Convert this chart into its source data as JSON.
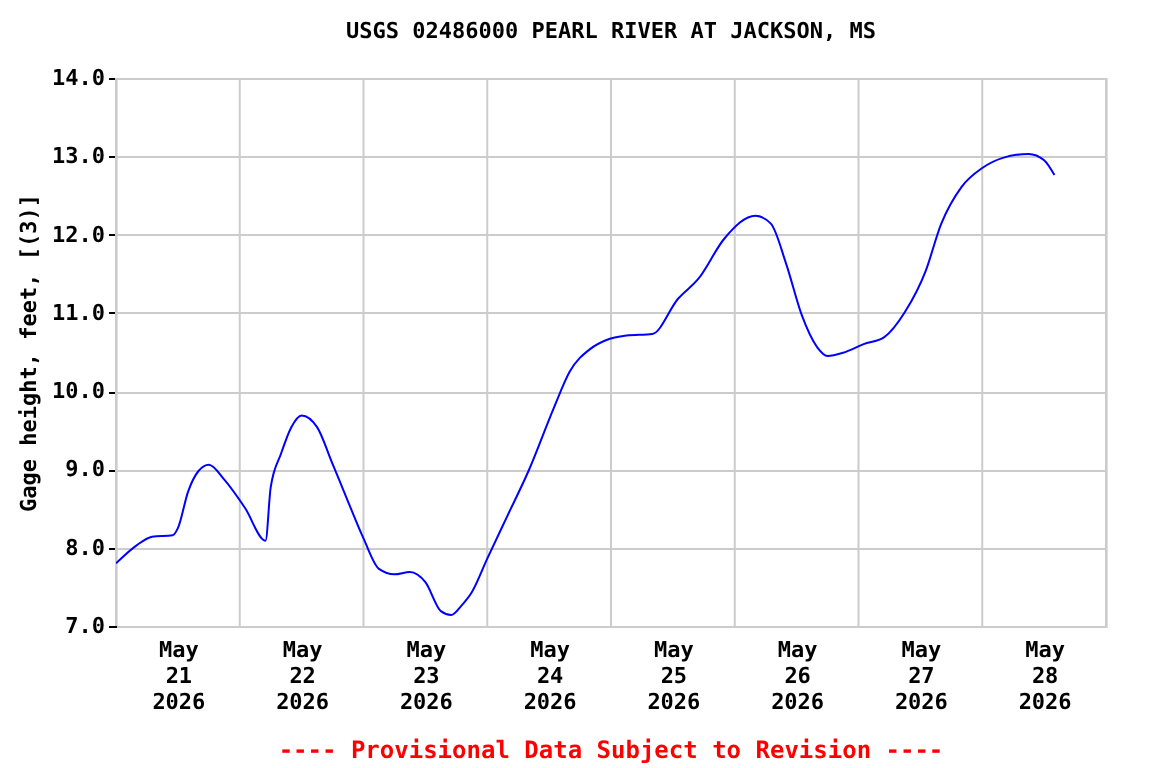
{
  "chart_data": {
    "type": "line",
    "title": "USGS 02486000 PEARL RIVER AT JACKSON, MS",
    "ylabel": "Gage height, feet, [(3)]",
    "annotations": [
      "---- Provisional Data Subject to Revision ----"
    ],
    "x": [
      "2026-05-21T00:00",
      "2026-05-21T04:00",
      "2026-05-21T07:00",
      "2026-05-21T11:00",
      "2026-05-21T12:00",
      "2026-05-21T14:00",
      "2026-05-21T16:00",
      "2026-05-21T18:00",
      "2026-05-21T21:00",
      "2026-05-22T01:00",
      "2026-05-22T05:00",
      "2026-05-22T06:00",
      "2026-05-22T08:00",
      "2026-05-22T10:00",
      "2026-05-22T12:00",
      "2026-05-22T15:00",
      "2026-05-22T18:00",
      "2026-05-22T21:00",
      "2026-05-23T00:00",
      "2026-05-23T03:00",
      "2026-05-23T06:00",
      "2026-05-23T09:00",
      "2026-05-23T12:00",
      "2026-05-23T15:00",
      "2026-05-23T17:00",
      "2026-05-23T19:00",
      "2026-05-23T21:00",
      "2026-05-24T00:00",
      "2026-05-24T04:00",
      "2026-05-24T08:00",
      "2026-05-24T13:00",
      "2026-05-24T16:00",
      "2026-05-24T20:00",
      "2026-05-24T23:00",
      "2026-05-25T03:00",
      "2026-05-25T08:00",
      "2026-05-25T13:00",
      "2026-05-25T17:00",
      "2026-05-25T22:00",
      "2026-05-26T04:00",
      "2026-05-26T07:00",
      "2026-05-26T10:00",
      "2026-05-26T13:00",
      "2026-05-26T16:00",
      "2026-05-26T18:00",
      "2026-05-26T21:00",
      "2026-05-27T01:00",
      "2026-05-27T05:00",
      "2026-05-27T09:00",
      "2026-05-27T13:00",
      "2026-05-27T16:00",
      "2026-05-27T20:00",
      "2026-05-28T00:00",
      "2026-05-28T04:00",
      "2026-05-28T09:00",
      "2026-05-28T12:00",
      "2026-05-28T14:00"
    ],
    "series": [
      {
        "color": "#0000ff",
        "values": [
          7.8,
          8.03,
          8.14,
          8.16,
          8.25,
          8.72,
          8.98,
          9.06,
          8.87,
          8.51,
          8.09,
          8.77,
          9.2,
          9.54,
          9.69,
          9.54,
          9.07,
          8.59,
          8.12,
          7.73,
          7.66,
          7.69,
          7.56,
          7.19,
          7.14,
          7.26,
          7.43,
          7.86,
          8.42,
          8.98,
          9.8,
          10.25,
          10.54,
          10.65,
          10.71,
          10.73,
          11.18,
          11.44,
          11.95,
          12.24,
          12.14,
          11.62,
          10.97,
          10.56,
          10.45,
          10.49,
          10.6,
          10.69,
          11.01,
          11.53,
          12.13,
          12.61,
          12.85,
          12.98,
          13.03,
          12.95,
          12.76
        ]
      }
    ],
    "xlim": [
      "2026-05-21T00:00",
      "2026-05-29T00:00"
    ],
    "xticks": [
      {
        "value": "2026-05-21T00:00",
        "label": null
      },
      {
        "value": "2026-05-21T12:00",
        "label": "May\n21\n2026"
      },
      {
        "value": "2026-05-22T00:00",
        "label": null
      },
      {
        "value": "2026-05-22T12:00",
        "label": "May\n22\n2026"
      },
      {
        "value": "2026-05-23T00:00",
        "label": null
      },
      {
        "value": "2026-05-23T12:00",
        "label": "May\n23\n2026"
      },
      {
        "value": "2026-05-24T00:00",
        "label": null
      },
      {
        "value": "2026-05-24T12:00",
        "label": "May\n24\n2026"
      },
      {
        "value": "2026-05-25T00:00",
        "label": null
      },
      {
        "value": "2026-05-25T12:00",
        "label": "May\n25\n2026"
      },
      {
        "value": "2026-05-26T00:00",
        "label": null
      },
      {
        "value": "2026-05-26T12:00",
        "label": "May\n26\n2026"
      },
      {
        "value": "2026-05-27T00:00",
        "label": null
      },
      {
        "value": "2026-05-27T12:00",
        "label": "May\n27\n2026"
      },
      {
        "value": "2026-05-28T00:00",
        "label": null
      },
      {
        "value": "2026-05-28T12:00",
        "label": "May\n28\n2026"
      },
      {
        "value": "2026-05-29T00:00",
        "label": null
      }
    ],
    "ylim": [
      7,
      14
    ],
    "yticks": [
      {
        "value": 7,
        "label": "7.0"
      },
      {
        "value": 8,
        "label": "8.0"
      },
      {
        "value": 9,
        "label": "9.0"
      },
      {
        "value": 10,
        "label": "10.0"
      },
      {
        "value": 11,
        "label": "11.0"
      },
      {
        "value": 12,
        "label": "12.0"
      },
      {
        "value": 13,
        "label": "13.0"
      },
      {
        "value": 14,
        "label": "14.0"
      }
    ],
    "grid": true,
    "marker": "none",
    "line_style": "solid"
  }
}
